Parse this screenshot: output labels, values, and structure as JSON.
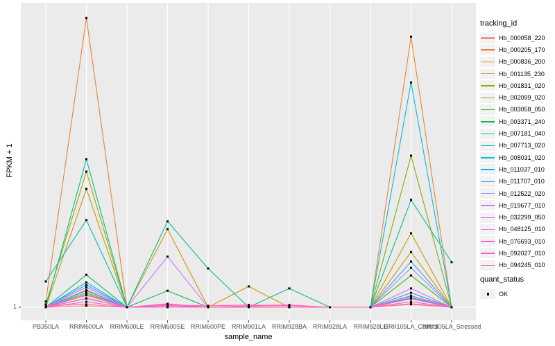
{
  "axes": {
    "y": {
      "title": "FPKM + 1",
      "tick": "1"
    },
    "x": {
      "title": "sample_name"
    }
  },
  "legend": {
    "tracking": {
      "title": "tracking_id"
    },
    "quant": {
      "title": "quant_status",
      "label": "OK",
      "point_color": "#000000"
    }
  },
  "style": {
    "panel_background": "#ebebeb",
    "gridline_color": "#ffffff",
    "tick_color": "#333333",
    "point_color": "#000000"
  },
  "chart_data": {
    "type": "line",
    "title": "",
    "xlabel": "sample_name",
    "ylabel": "FPKM + 1",
    "legend_position": "right",
    "grid": "vertical-major-only",
    "y_axis_ticks": [
      "1"
    ],
    "values_unit": "relative height above baseline value 1 (0 = FPKM+1 of 1, 1 = tallest peak); only the tick '1' is labeled on the y axis",
    "categories": [
      "PB350LA",
      "RRIM600LA",
      "RRIM600LE",
      "RRIM600SE",
      "RRIM600PE",
      "RRIM901LA",
      "RRIM928BA",
      "RRIM928LA",
      "RRIM928LE",
      "RRII105LA_Control",
      "RRII105LA_Stressed"
    ],
    "quant_status_all_points": "OK",
    "series": [
      {
        "name": "Hb_000058_220",
        "color": "#F8766D",
        "values": [
          0,
          0.005,
          0,
          0.005,
          0,
          0.003,
          0,
          0,
          0,
          0.012,
          0
        ]
      },
      {
        "name": "Hb_000205_170",
        "color": "#EA8331",
        "values": [
          0.02,
          1.0,
          0,
          0,
          0,
          0,
          0,
          0,
          0,
          0.935,
          0
        ]
      },
      {
        "name": "Hb_000836_200",
        "color": "#D89000",
        "values": [
          0,
          0.045,
          0,
          0.27,
          0,
          0.072,
          0,
          0,
          0,
          0.191,
          0
        ]
      },
      {
        "name": "Hb_001135_230",
        "color": "#C09B00",
        "values": [
          0,
          0.409,
          0,
          0.005,
          0,
          0,
          0,
          0,
          0,
          0.256,
          0
        ]
      },
      {
        "name": "Hb_001831_020",
        "color": "#A3A500",
        "values": [
          0.01,
          0.469,
          0,
          0,
          0,
          0,
          0,
          0,
          0,
          0.03,
          0
        ]
      },
      {
        "name": "Hb_002099_020",
        "color": "#7CAE00",
        "values": [
          0,
          0.03,
          0,
          0,
          0,
          0,
          0,
          0,
          0,
          0.524,
          0
        ]
      },
      {
        "name": "Hb_003058_050",
        "color": "#39B600",
        "values": [
          0,
          0.057,
          0,
          0,
          0,
          0,
          0,
          0,
          0,
          0.11,
          0
        ]
      },
      {
        "name": "Hb_003371_240",
        "color": "#00BB4E",
        "values": [
          0,
          0.112,
          0,
          0.057,
          0,
          0,
          0,
          0,
          0,
          0.04,
          0
        ]
      },
      {
        "name": "Hb_007181_040",
        "color": "#00C087",
        "values": [
          0,
          0.512,
          0,
          0.297,
          0.134,
          0,
          0.065,
          0,
          0,
          0.371,
          0.156
        ]
      },
      {
        "name": "Hb_007713_020",
        "color": "#00C0AF",
        "values": [
          0.089,
          0.301,
          0,
          0,
          0,
          0,
          0,
          0,
          0,
          0.05,
          0
        ]
      },
      {
        "name": "Hb_008031_020",
        "color": "#00BCD8",
        "values": [
          0,
          0.05,
          0,
          0,
          0,
          0,
          0,
          0,
          0,
          0.777,
          0
        ]
      },
      {
        "name": "Hb_011037_010",
        "color": "#00B0F6",
        "values": [
          0,
          0.086,
          0,
          0,
          0,
          0,
          0,
          0,
          0,
          0.033,
          0
        ]
      },
      {
        "name": "Hb_011707_010",
        "color": "#35A2FF",
        "values": [
          0,
          0.077,
          0,
          0,
          0,
          0,
          0,
          0,
          0,
          0.158,
          0
        ]
      },
      {
        "name": "Hb_012522_020",
        "color": "#9590FF",
        "values": [
          0,
          0.03,
          0,
          0,
          0,
          0,
          0,
          0,
          0,
          0.136,
          0
        ]
      },
      {
        "name": "Hb_019677_010",
        "color": "#C77CFF",
        "values": [
          0,
          0.069,
          0,
          0.175,
          0,
          0,
          0,
          0,
          0,
          0.04,
          0
        ]
      },
      {
        "name": "Hb_032299_050",
        "color": "#E76BF3",
        "values": [
          0,
          0.06,
          0,
          0,
          0,
          0,
          0,
          0,
          0,
          0.065,
          0
        ]
      },
      {
        "name": "Hb_048125_010",
        "color": "#FA62DB",
        "values": [
          0,
          0.041,
          0,
          0.01,
          0,
          0,
          0,
          0,
          0,
          0.038,
          0
        ]
      },
      {
        "name": "Hb_076693_010",
        "color": "#FF61CC",
        "values": [
          0,
          0.031,
          0,
          0.008,
          0.005,
          0.008,
          0.005,
          0,
          0,
          0.029,
          0
        ]
      },
      {
        "name": "Hb_092027_010",
        "color": "#FF62BC",
        "values": [
          0,
          0.019,
          0,
          0.012,
          0,
          0.005,
          0.008,
          0,
          0,
          0.019,
          0
        ]
      },
      {
        "name": "Hb_094245_010",
        "color": "#FF6A98",
        "values": [
          0.005,
          0.01,
          0,
          0.005,
          0,
          0,
          0,
          0,
          0,
          0.01,
          0
        ]
      }
    ]
  }
}
